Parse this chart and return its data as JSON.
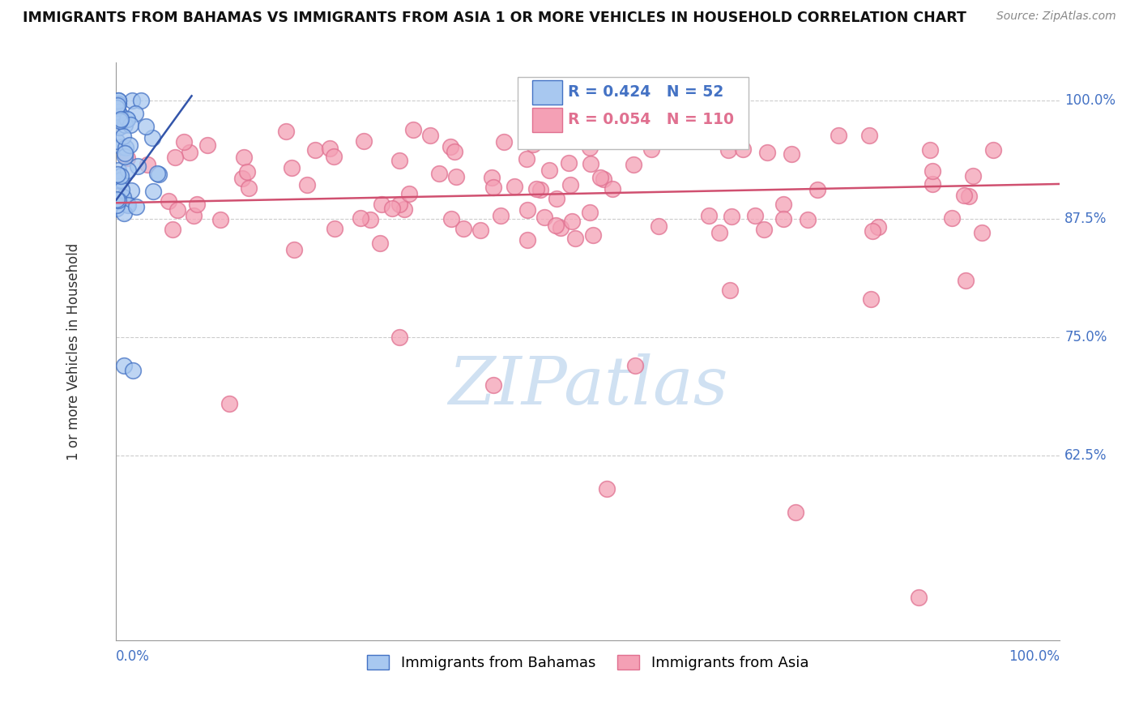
{
  "title": "IMMIGRANTS FROM BAHAMAS VS IMMIGRANTS FROM ASIA 1 OR MORE VEHICLES IN HOUSEHOLD CORRELATION CHART",
  "source": "Source: ZipAtlas.com",
  "ylabel": "1 or more Vehicles in Household",
  "xlim": [
    0.0,
    1.0
  ],
  "ylim": [
    0.43,
    1.04
  ],
  "ytick_labels": [
    "62.5%",
    "75.0%",
    "87.5%",
    "100.0%"
  ],
  "ytick_values": [
    0.625,
    0.75,
    0.875,
    1.0
  ],
  "legend_r_bahamas": "0.424",
  "legend_n_bahamas": "52",
  "legend_r_asia": "0.054",
  "legend_n_asia": "110",
  "blue_face_color": "#A8C8F0",
  "blue_edge_color": "#4472C4",
  "pink_face_color": "#F4A0B5",
  "pink_edge_color": "#E07090",
  "blue_line_color": "#3355AA",
  "pink_line_color": "#D05070",
  "background_color": "#FFFFFF",
  "grid_color": "#CCCCCC",
  "watermark_color": "#C8DCF0",
  "title_color": "#111111",
  "source_color": "#888888",
  "ylabel_color": "#333333",
  "tick_label_color": "#4472C4",
  "legend_box_edge_color": "#BBBBBB",
  "bah_line_x": [
    0.0,
    0.08
  ],
  "bah_line_y": [
    0.895,
    1.005
  ],
  "asia_line_x": [
    0.0,
    1.0
  ],
  "asia_line_y": [
    0.892,
    0.912
  ]
}
